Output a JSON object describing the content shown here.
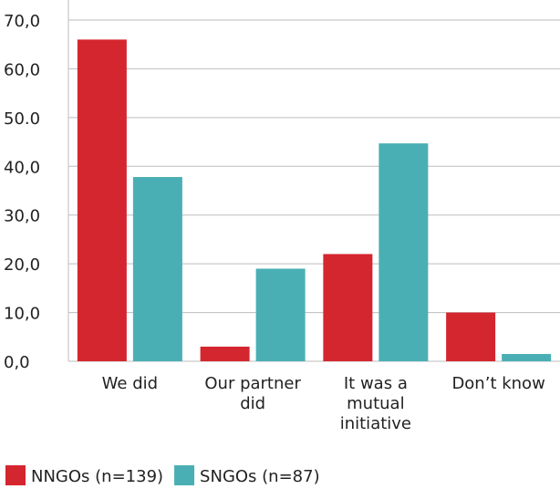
{
  "chart_data": {
    "type": "bar",
    "categories": [
      "We did",
      "Our partner\ndid",
      "It was a\nmutual\ninitiative",
      "Don’t know"
    ],
    "series": [
      {
        "name": "NNGOs (n=139)",
        "color": "#d4262e",
        "values": [
          66,
          3,
          22,
          10
        ]
      },
      {
        "name": "SNGOs (n=87)",
        "color": "#4aafb4",
        "values": [
          37.8,
          19,
          44.7,
          1.5
        ]
      }
    ],
    "ylim": [
      0,
      70
    ],
    "yticks": [
      {
        "value": 0,
        "label": "0,0"
      },
      {
        "value": 10,
        "label": "10,0"
      },
      {
        "value": 20,
        "label": "20,0"
      },
      {
        "value": 30,
        "label": "30,0"
      },
      {
        "value": 40,
        "label": "40,0"
      },
      {
        "value": 50,
        "label": "50.0"
      },
      {
        "value": 60,
        "label": "60,0"
      },
      {
        "value": 70,
        "label": "70,0"
      }
    ],
    "grid": true,
    "legend": "bottom"
  }
}
